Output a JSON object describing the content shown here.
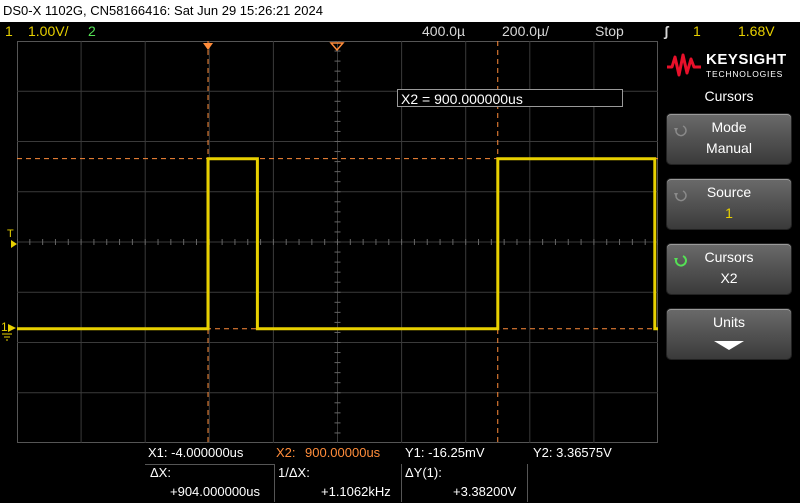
{
  "title": "DS0-X 1102G, CN58166416: Sat Jun 29 15:26:21 2024",
  "status": {
    "ch1_num": "1",
    "ch1_scale": "1.00V/",
    "ch2_num": "2",
    "time_pos": "400.0µ",
    "time_scale": "200.0µ/",
    "run_state": "Stop",
    "trig_edge": "ʃ",
    "trig_ch": "1",
    "trig_level": "1.68V"
  },
  "readout_box": "X2 = 900.000000us",
  "markers": {
    "trigger": "T",
    "ground": "1"
  },
  "panel": {
    "brand": "KEYSIGHT",
    "brand_sub": "TECHNOLOGIES",
    "title": "Cursors",
    "softkeys": [
      {
        "label": "Mode",
        "value": "Manual"
      },
      {
        "label": "Source",
        "value": "1"
      },
      {
        "label": "Cursors",
        "value": "X2"
      },
      {
        "label": "Units",
        "value": ""
      }
    ]
  },
  "cursors": {
    "x1": "X1: -4.000000us",
    "x2_label": "X2:",
    "x2_value": "900.00000us",
    "y1": "Y1: -16.25mV",
    "y2": "Y2:  3.36575V",
    "dx_label": "ΔX:",
    "dx_value": "+904.000000us",
    "inv_dx_label": "1/ΔX:",
    "inv_dx_value": "+1.1062kHz",
    "dy_label": "ΔY(1):",
    "dy_value": "+3.38200V"
  },
  "colors": {
    "ch1": "#e8d000",
    "ch2": "#55e055",
    "x1_cursor": "#ff8c3a",
    "x2_cursor": "#ff8c3a",
    "y_cursor": "#ff8c3a",
    "grid": "#3a3a3a"
  },
  "waveform": {
    "low_level_v": -0.016,
    "high_level_v": 3.37,
    "pulses_us": [
      [
        -4,
        150
      ],
      [
        900,
        1390
      ]
    ]
  }
}
